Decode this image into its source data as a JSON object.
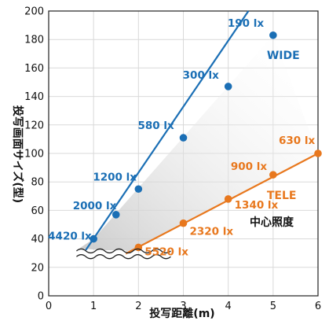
{
  "chart_data": {
    "type": "line",
    "title": "",
    "xlabel": "投写距離(m)",
    "ylabel": "投写画面サイズ(型)",
    "xlim": [
      0,
      6
    ],
    "ylim": [
      0,
      200
    ],
    "x_ticks": [
      "0",
      "1",
      "2",
      "3",
      "4",
      "5",
      "6"
    ],
    "y_ticks": [
      "0",
      "20",
      "40",
      "60",
      "80",
      "100",
      "120",
      "140",
      "160",
      "180",
      "200"
    ],
    "grid": true,
    "annotation": "中心照度",
    "colors": {
      "wide": "#1b6fb5",
      "tele": "#e8781e",
      "shade": "#d6d6d6"
    },
    "series": [
      {
        "name": "WIDE",
        "line": [
          [
            0.78,
            30
          ],
          [
            4.45,
            200
          ]
        ],
        "points": [
          {
            "x": 1.0,
            "y": 40,
            "label": "4420 lx"
          },
          {
            "x": 1.5,
            "y": 57,
            "label": "2000 lx"
          },
          {
            "x": 2.0,
            "y": 75,
            "label": "1200 lx"
          },
          {
            "x": 3.0,
            "y": 111,
            "label": "580 lx"
          },
          {
            "x": 4.0,
            "y": 147,
            "label": "300 lx"
          },
          {
            "x": 5.0,
            "y": 183,
            "label": "190 lx"
          }
        ]
      },
      {
        "name": "TELE",
        "line": [
          [
            1.68,
            29
          ],
          [
            6.0,
            100
          ]
        ],
        "points": [
          {
            "x": 2.0,
            "y": 34,
            "label": "5520 lx"
          },
          {
            "x": 3.0,
            "y": 51,
            "label": "2320 lx"
          },
          {
            "x": 4.0,
            "y": 68,
            "label": "1340 lx"
          },
          {
            "x": 5.0,
            "y": 85,
            "label": "900 lx"
          },
          {
            "x": 6.0,
            "y": 100,
            "label": "630 lx"
          }
        ]
      }
    ]
  }
}
